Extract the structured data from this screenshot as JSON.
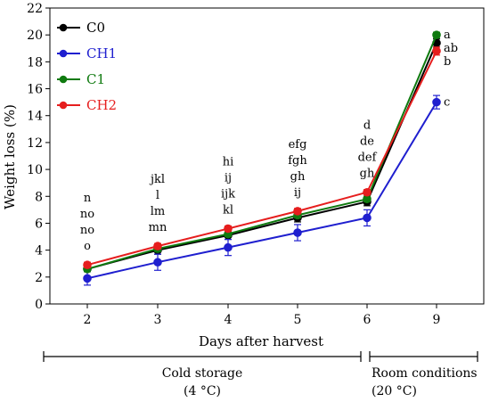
{
  "chart_data": {
    "type": "line",
    "title": "",
    "xlabel": "Days after harvest",
    "ylabel": "Weight loss (%)",
    "categories": [
      "2",
      "3",
      "4",
      "5",
      "6",
      "9"
    ],
    "ylim": [
      0,
      22
    ],
    "y_ticks": [
      0,
      2,
      4,
      6,
      8,
      10,
      12,
      14,
      16,
      18,
      20,
      22
    ],
    "grid": false,
    "legend_position": "top-left",
    "series": [
      {
        "name": "C0",
        "color": "#000000",
        "values": [
          2.6,
          4.0,
          5.1,
          6.4,
          7.6,
          19.4
        ],
        "errors": [
          0.2,
          0.3,
          0.3,
          0.3,
          0.3,
          0.3
        ]
      },
      {
        "name": "CH1",
        "color": "#1f1fcf",
        "values": [
          1.9,
          3.1,
          4.2,
          5.3,
          6.4,
          15.0
        ],
        "errors": [
          0.5,
          0.6,
          0.6,
          0.6,
          0.6,
          0.5
        ]
      },
      {
        "name": "C1",
        "color": "#0f7a0f",
        "values": [
          2.6,
          4.1,
          5.2,
          6.6,
          7.8,
          20.0
        ],
        "errors": [
          0.2,
          0.2,
          0.2,
          0.2,
          0.2,
          0.2
        ]
      },
      {
        "name": "CH2",
        "color": "#e61e1e",
        "values": [
          2.9,
          4.3,
          5.6,
          6.9,
          8.3,
          18.8
        ],
        "errors": [
          0.2,
          0.2,
          0.2,
          0.2,
          0.2,
          0.3
        ]
      }
    ],
    "group_labels": [
      {
        "category": "2",
        "lines": [
          "n",
          "no",
          "no",
          "o"
        ]
      },
      {
        "category": "3",
        "lines": [
          "jkl",
          "l",
          "lm",
          "mn"
        ]
      },
      {
        "category": "4",
        "lines": [
          "hi",
          "ij",
          "ijk",
          "kl"
        ]
      },
      {
        "category": "5",
        "lines": [
          "efg",
          "fgh",
          "gh",
          "ij"
        ]
      },
      {
        "category": "6",
        "lines": [
          "d",
          "de",
          "def",
          "gh"
        ]
      }
    ],
    "end_labels": [
      {
        "series": "C1",
        "label": "a"
      },
      {
        "series": "C0",
        "label": "ab"
      },
      {
        "series": "CH2",
        "label": "b"
      },
      {
        "series": "CH1",
        "label": "c"
      }
    ],
    "periods": [
      {
        "lines": [
          "Cold storage",
          "(4 °C)"
        ],
        "from": "2",
        "to": "6"
      },
      {
        "lines": [
          "Room conditions",
          "(20 °C)"
        ],
        "from": "6",
        "to": "9"
      }
    ]
  }
}
